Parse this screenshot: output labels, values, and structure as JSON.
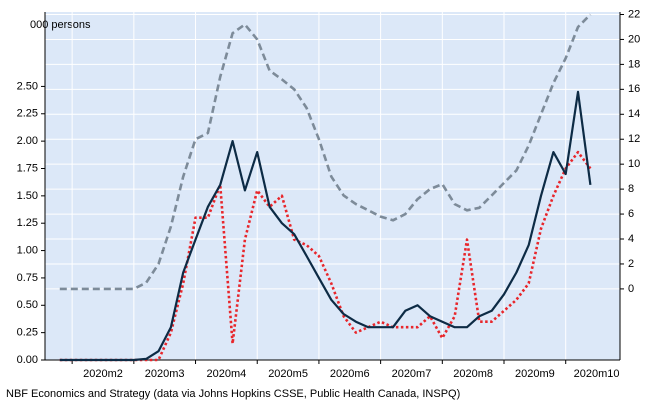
{
  "chart_data": {
    "type": "line",
    "y_unit_label": "000 persons",
    "source": "NBF Economics and Strategy (data via Johns Hopkins CSSE, Public Health Canada, INSPQ)",
    "x": [
      1.8,
      2.0,
      2.2,
      2.4,
      2.6,
      2.8,
      3.0,
      3.2,
      3.4,
      3.6,
      3.8,
      4.0,
      4.2,
      4.4,
      4.6,
      4.8,
      5.0,
      5.2,
      5.4,
      5.6,
      5.8,
      6.0,
      6.2,
      6.4,
      6.6,
      6.8,
      7.0,
      7.2,
      7.4,
      7.6,
      7.8,
      8.0,
      8.2,
      8.4,
      8.6,
      8.8,
      9.0,
      9.2,
      9.4,
      9.6,
      9.8,
      10.0,
      10.2,
      10.4
    ],
    "xlim": [
      1.56,
      10.88
    ],
    "xticks": [
      {
        "value": 2.5,
        "label": "2020m2"
      },
      {
        "value": 3.5,
        "label": "2020m3"
      },
      {
        "value": 4.5,
        "label": "2020m4"
      },
      {
        "value": 5.5,
        "label": "2020m5"
      },
      {
        "value": 6.5,
        "label": "2020m6"
      },
      {
        "value": 7.5,
        "label": "2020m7"
      },
      {
        "value": 8.5,
        "label": "2020m8"
      },
      {
        "value": 9.5,
        "label": "2020m9"
      },
      {
        "value": 10.5,
        "label": "2020m10"
      }
    ],
    "ylim": [
      0,
      3.18
    ],
    "yticks": [
      {
        "value": 0,
        "label": "0.00"
      },
      {
        "value": 0.25,
        "label": "0.25"
      },
      {
        "value": 0.5,
        "label": "0.50"
      },
      {
        "value": 0.75,
        "label": "0.75"
      },
      {
        "value": 1,
        "label": "1.00"
      },
      {
        "value": 1.25,
        "label": "1.25"
      },
      {
        "value": 1.5,
        "label": "1.50"
      },
      {
        "value": 1.75,
        "label": "1.75"
      },
      {
        "value": 2,
        "label": "2.00"
      },
      {
        "value": 2.25,
        "label": "2.25"
      },
      {
        "value": 2.5,
        "label": "2.50"
      }
    ],
    "y2lim": [
      -5.7,
      22.2
    ],
    "y2ticks": [
      0,
      2,
      4,
      6,
      8,
      10,
      12,
      14,
      16,
      18,
      20,
      22
    ],
    "grid": true,
    "series": [
      {
        "color": "#7d8b99",
        "style": "dashed",
        "axis": "y2",
        "values": [
          0,
          0,
          0,
          0,
          0,
          0,
          0,
          0.5,
          2,
          5,
          9,
          12,
          12.5,
          17,
          20.5,
          21.2,
          20,
          17.5,
          16.8,
          16,
          14.5,
          12,
          9,
          7.5,
          6.8,
          6.3,
          5.8,
          5.5,
          6,
          7.2,
          8,
          8.4,
          6.8,
          6.3,
          6.5,
          7.5,
          8.5,
          9.5,
          11.5,
          14,
          16.5,
          18.5,
          21,
          22
        ]
      },
      {
        "color": "#e8262b",
        "style": "dotted",
        "axis": "y",
        "values": [
          0,
          0,
          0,
          0,
          0,
          0,
          0,
          0,
          0,
          0.25,
          0.7,
          1.3,
          1.3,
          1.6,
          0.15,
          1.1,
          1.55,
          1.4,
          1.5,
          1.1,
          1.05,
          0.95,
          0.7,
          0.4,
          0.25,
          0.3,
          0.35,
          0.3,
          0.3,
          0.3,
          0.4,
          0.2,
          0.4,
          1.1,
          0.35,
          0.35,
          0.45,
          0.55,
          0.7,
          1.2,
          1.5,
          1.75,
          1.9,
          1.75
        ]
      },
      {
        "color": "#0d2b45",
        "style": "solid",
        "axis": "y",
        "values": [
          0,
          0,
          0,
          0,
          0,
          0,
          0,
          0.01,
          0.08,
          0.3,
          0.8,
          1.1,
          1.4,
          1.6,
          2.0,
          1.55,
          1.9,
          1.4,
          1.25,
          1.15,
          0.95,
          0.75,
          0.55,
          0.42,
          0.35,
          0.3,
          0.3,
          0.3,
          0.45,
          0.5,
          0.4,
          0.35,
          0.3,
          0.3,
          0.4,
          0.45,
          0.6,
          0.8,
          1.05,
          1.5,
          1.9,
          1.7,
          2.45,
          1.6
        ]
      }
    ]
  }
}
